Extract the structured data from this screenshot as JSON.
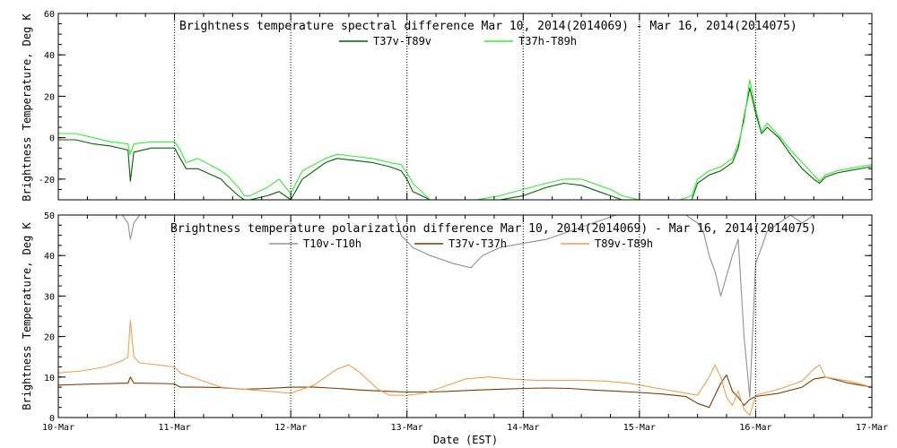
{
  "colors": {
    "background": "#ffffff",
    "axis": "#000000",
    "grid": "#000000",
    "T37v_T89v": "#006400",
    "T37h_T89h": "#33ee33",
    "T10v_T10h": "#909090",
    "T37v_T37h": "#7a3b00",
    "T89v_T89h": "#f0a050"
  },
  "chart_data": [
    {
      "type": "line",
      "title": "Brightness temperature spectral difference      Mar 10, 2014(2014069) - Mar 16, 2014(2014075)",
      "ylabel": "Brightness Temperature, Deg K",
      "xlabel": "",
      "xlim": [
        0,
        7
      ],
      "ylim": [
        -30,
        60
      ],
      "yticks": [
        -20,
        0,
        20,
        40,
        60
      ],
      "xtick_labels": [
        "",
        "",
        "",
        "",
        "",
        "",
        "",
        ""
      ],
      "grid": "vertical dotted at day boundaries",
      "legend": "top",
      "x_unit": "days since Mar 10",
      "series": [
        {
          "name": "T37v-T89v",
          "color_key": "T37v_T89v",
          "x": [
            0,
            0.15,
            0.3,
            0.45,
            0.6,
            0.62,
            0.65,
            0.8,
            1.0,
            1.05,
            1.1,
            1.2,
            1.4,
            1.45,
            1.55,
            1.6,
            1.65,
            1.8,
            1.9,
            2.0,
            2.1,
            2.3,
            2.4,
            2.55,
            2.7,
            2.85,
            2.95,
            3.0,
            3.05,
            3.2,
            3.4,
            3.6,
            3.8,
            4.0,
            4.2,
            4.35,
            4.5,
            4.65,
            4.75,
            4.85,
            5.0,
            5.2,
            5.35,
            5.45,
            5.5,
            5.6,
            5.7,
            5.8,
            5.85,
            5.9,
            5.95,
            6.0,
            6.05,
            6.1,
            6.2,
            6.3,
            6.4,
            6.5,
            6.55,
            6.6,
            6.7,
            6.8,
            7.0
          ],
          "y": [
            -1,
            -1,
            -3,
            -4,
            -6,
            -21,
            -7,
            -5,
            -5,
            -10,
            -15,
            -15,
            -20,
            -23,
            -28,
            -30,
            -30,
            -28,
            -26,
            -30,
            -20,
            -12,
            -10,
            -11,
            -12,
            -14,
            -16,
            -20,
            -26,
            -30,
            -30,
            -30,
            -30,
            -28,
            -24,
            -22,
            -23,
            -26,
            -28,
            -30,
            -30,
            -30,
            -30,
            -30,
            -22,
            -18,
            -16,
            -12,
            -5,
            10,
            24,
            12,
            2,
            5,
            0,
            -8,
            -15,
            -20,
            -22,
            -19,
            -17,
            -16,
            -14
          ]
        },
        {
          "name": "T37h-T89h",
          "color_key": "T37h_T89h",
          "x": [
            0,
            0.15,
            0.3,
            0.45,
            0.6,
            0.62,
            0.65,
            0.8,
            1.0,
            1.05,
            1.1,
            1.2,
            1.4,
            1.45,
            1.55,
            1.6,
            1.65,
            1.8,
            1.9,
            2.0,
            2.1,
            2.3,
            2.4,
            2.55,
            2.7,
            2.85,
            2.95,
            3.0,
            3.05,
            3.2,
            3.4,
            3.6,
            3.8,
            4.0,
            4.2,
            4.35,
            4.5,
            4.65,
            4.75,
            4.85,
            5.0,
            5.2,
            5.35,
            5.45,
            5.5,
            5.6,
            5.7,
            5.8,
            5.85,
            5.9,
            5.95,
            6.0,
            6.05,
            6.1,
            6.2,
            6.3,
            6.4,
            6.5,
            6.55,
            6.6,
            6.7,
            6.8,
            7.0
          ],
          "y": [
            2,
            2,
            0,
            -2,
            -3,
            -8,
            -3,
            -2,
            -2,
            -6,
            -12,
            -10,
            -16,
            -18,
            -24,
            -28,
            -28,
            -24,
            -20,
            -27,
            -16,
            -10,
            -8,
            -9,
            -10,
            -12,
            -13,
            -17,
            -22,
            -30,
            -30,
            -30,
            -28,
            -25,
            -22,
            -20,
            -20,
            -23,
            -25,
            -28,
            -30,
            -30,
            -30,
            -28,
            -20,
            -16,
            -14,
            -10,
            -3,
            8,
            28,
            14,
            3,
            7,
            1,
            -6,
            -12,
            -18,
            -21,
            -18,
            -16,
            -15,
            -13
          ]
        }
      ]
    },
    {
      "type": "line",
      "title": "Brightness temperature polarization difference     Mar 10, 2014(2014069) - Mar 16, 2014(2014075)",
      "ylabel": "Brightness Temperature, Deg K",
      "xlabel": "Date (EST)",
      "xlim": [
        0,
        7
      ],
      "ylim": [
        0,
        50
      ],
      "yticks": [
        0,
        10,
        20,
        30,
        40,
        50
      ],
      "xtick_labels": [
        "10-Mar",
        "11-Mar",
        "12-Mar",
        "13-Mar",
        "14-Mar",
        "15-Mar",
        "16-Mar",
        "17-Mar"
      ],
      "grid": "vertical dotted at day boundaries",
      "legend": "top",
      "x_unit": "days since Mar 10",
      "series": [
        {
          "name": "T10v-T10h",
          "color_key": "T10v_T10h",
          "x": [
            0.55,
            0.6,
            0.62,
            0.65,
            0.7,
            2.9,
            2.95,
            3.05,
            3.2,
            3.4,
            3.55,
            3.65,
            3.8,
            4.0,
            4.2,
            4.4,
            4.6,
            4.8,
            5.0,
            5.2,
            5.4,
            5.5,
            5.55,
            5.6,
            5.65,
            5.7,
            5.75,
            5.8,
            5.85,
            5.9,
            5.95,
            6.0,
            6.05,
            6.1,
            6.2,
            6.3,
            6.4,
            6.5,
            6.55
          ],
          "y": [
            50,
            48,
            44,
            48,
            50,
            50,
            45,
            42,
            40,
            38,
            37,
            40,
            42,
            43,
            44,
            46,
            48,
            50,
            50,
            50,
            50,
            48,
            46,
            40,
            36,
            30,
            35,
            40,
            44,
            20,
            5,
            38,
            42,
            46,
            48,
            50,
            48,
            50,
            50
          ]
        },
        {
          "name": "T37v-T37h",
          "color_key": "T37v_T37h",
          "x": [
            0,
            0.3,
            0.6,
            0.62,
            0.65,
            0.9,
            1.0,
            1.05,
            1.2,
            1.4,
            1.6,
            1.8,
            2.0,
            2.2,
            2.4,
            2.6,
            2.8,
            3.0,
            3.2,
            3.4,
            3.6,
            3.8,
            4.0,
            4.2,
            4.4,
            4.6,
            4.8,
            5.0,
            5.2,
            5.4,
            5.5,
            5.6,
            5.7,
            5.75,
            5.8,
            5.85,
            5.9,
            5.95,
            6.0,
            6.2,
            6.4,
            6.5,
            6.6,
            6.8,
            7.0
          ],
          "y": [
            8,
            8.3,
            8.5,
            10,
            8.5,
            8.4,
            8.3,
            7.5,
            7.5,
            7.4,
            7.0,
            7.2,
            7.5,
            7.5,
            7.2,
            6.8,
            6.5,
            6.3,
            6.3,
            6.5,
            6.8,
            7.0,
            7.2,
            7.3,
            7.2,
            6.8,
            6.5,
            6.2,
            5.8,
            5.2,
            3.5,
            2.5,
            8.5,
            10.5,
            6.5,
            5.0,
            3.0,
            4.5,
            5.2,
            6.0,
            7.5,
            9.5,
            10.0,
            8.5,
            7.5
          ]
        },
        {
          "name": "T89v-T89h",
          "color_key": "T89v_T89h",
          "x": [
            0,
            0.2,
            0.4,
            0.55,
            0.6,
            0.62,
            0.65,
            0.7,
            0.85,
            1.0,
            1.05,
            1.2,
            1.4,
            1.6,
            1.8,
            2.0,
            2.2,
            2.3,
            2.4,
            2.5,
            2.6,
            2.75,
            2.85,
            3.0,
            3.15,
            3.3,
            3.5,
            3.7,
            3.9,
            4.1,
            4.3,
            4.5,
            4.7,
            4.9,
            5.1,
            5.3,
            5.5,
            5.6,
            5.65,
            5.7,
            5.75,
            5.8,
            5.85,
            5.9,
            5.95,
            6.0,
            6.2,
            6.4,
            6.5,
            6.55,
            6.6,
            6.8,
            7.0
          ],
          "y": [
            11,
            11.5,
            12.5,
            14,
            15,
            24,
            15,
            13.5,
            13,
            12.5,
            11,
            9.5,
            7.5,
            7.0,
            6.5,
            6.0,
            8.0,
            10.0,
            12.0,
            13.0,
            11.0,
            7.0,
            5.5,
            5.5,
            6.0,
            7.5,
            9.5,
            10.0,
            9.5,
            9.2,
            9.2,
            9.2,
            9.0,
            8.5,
            7.5,
            6.5,
            5.5,
            10.0,
            13.0,
            10.0,
            5.0,
            3.0,
            6.5,
            2.0,
            0.5,
            5.5,
            7.0,
            9.0,
            12.0,
            13.0,
            10.0,
            9.0,
            7.5
          ]
        }
      ]
    }
  ]
}
